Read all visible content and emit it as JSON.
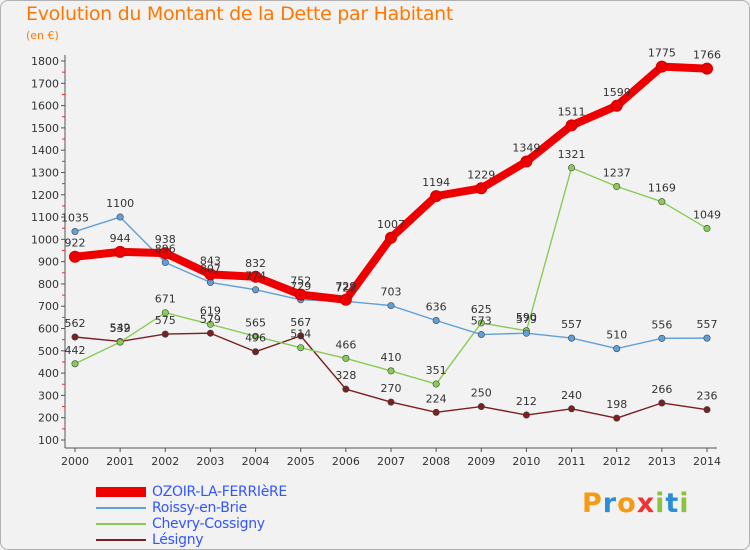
{
  "header": {
    "title": "Evolution du Montant de la Dette par Habitant",
    "unit": "(en €)"
  },
  "logo": {
    "letters": [
      "P",
      "r",
      "o",
      "x",
      "i",
      "t",
      "i"
    ],
    "colors": [
      "#f59a12",
      "#2a8fd6",
      "#f59a12",
      "#ee3333",
      "#8bc43a",
      "#2a8fd6",
      "#8bc43a"
    ]
  },
  "chart_data": {
    "type": "line",
    "title": "Evolution du Montant de la Dette par Habitant",
    "ylabel": "(en €)",
    "xlabel": "",
    "x": [
      "2000",
      "2001",
      "2002",
      "2003",
      "2004",
      "2005",
      "2006",
      "2007",
      "2008",
      "2009",
      "2010",
      "2011",
      "2012",
      "2013",
      "2014"
    ],
    "ylim": [
      100,
      1800
    ],
    "yticks": [
      100,
      200,
      300,
      400,
      500,
      600,
      700,
      800,
      900,
      1000,
      1100,
      1200,
      1300,
      1400,
      1500,
      1600,
      1700,
      1800
    ],
    "grid": false,
    "legend_position": "bottom-left",
    "series": [
      {
        "name": "OZOIR-LA-FERRIèRE",
        "color": "#ee0000",
        "values": [
          922,
          944,
          938,
          843,
          832,
          752,
          729,
          1007,
          1194,
          1229,
          1349,
          1511,
          1599,
          1775,
          1766
        ],
        "labels": [
          "922",
          "944",
          "938",
          "843",
          "832",
          "752",
          "729",
          "1007",
          "1194",
          "1229",
          "1349",
          "1511",
          "1599",
          "1775",
          "1766"
        ]
      },
      {
        "name": "Roissy-en-Brie",
        "color": "#5fa0d8",
        "values": [
          1035,
          1100,
          896,
          807,
          774,
          729,
          722,
          703,
          636,
          573,
          579,
          557,
          510,
          556,
          557
        ],
        "labels": [
          "1035",
          "1100",
          "896",
          "807",
          "774",
          "729",
          "722",
          "703",
          "636",
          "573",
          "579",
          "557",
          "510",
          "556",
          "557"
        ]
      },
      {
        "name": "Chevry-Cossigny",
        "color": "#88cc55",
        "values": [
          442,
          539,
          671,
          619,
          565,
          514,
          466,
          410,
          351,
          625,
          590,
          1321,
          1237,
          1169,
          1049
        ],
        "labels": [
          "442",
          "539",
          "671",
          "619",
          "565",
          "514",
          "466",
          "410",
          "351",
          "625",
          "590",
          "1321",
          "1237",
          "1169",
          "1049"
        ]
      },
      {
        "name": "Lésigny",
        "color": "#7a2020",
        "values": [
          562,
          542,
          575,
          579,
          496,
          567,
          328,
          270,
          224,
          250,
          212,
          240,
          198,
          266,
          236
        ],
        "labels": [
          "562",
          "542",
          "575",
          "579",
          "496",
          "567",
          "328",
          "270",
          "224",
          "250",
          "212",
          "240",
          "198",
          "266",
          "236"
        ]
      }
    ]
  }
}
